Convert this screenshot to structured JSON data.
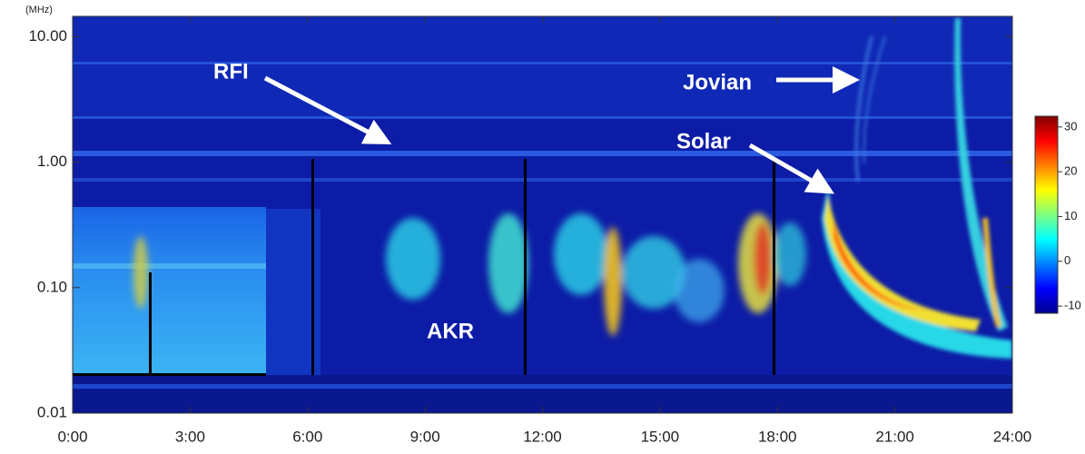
{
  "chart_data": {
    "type": "spectrogram",
    "y_unit": "(MHz)",
    "xlim": [
      0,
      24
    ],
    "xticks": [
      {
        "value": 0,
        "label": "0:00"
      },
      {
        "value": 3,
        "label": "3:00"
      },
      {
        "value": 6,
        "label": "6:00"
      },
      {
        "value": 9,
        "label": "9:00"
      },
      {
        "value": 12,
        "label": "12:00"
      },
      {
        "value": 15,
        "label": "15:00"
      },
      {
        "value": 18,
        "label": "18:00"
      },
      {
        "value": 21,
        "label": "21:00"
      },
      {
        "value": 24,
        "label": "24:00"
      }
    ],
    "yscale": "log",
    "ylim": [
      0.01,
      14.5
    ],
    "yticks": [
      {
        "value": 0.01,
        "label": "0.01"
      },
      {
        "value": 0.1,
        "label": "0.10"
      },
      {
        "value": 1,
        "label": "1.00"
      },
      {
        "value": 10,
        "label": "10.00"
      }
    ],
    "colorbar": {
      "lim": [
        -11.6,
        32.4
      ],
      "ticks": [
        -10,
        0,
        10,
        20,
        30
      ],
      "colormap": "jet"
    },
    "annotations": [
      "RFI",
      "Jovian",
      "Solar",
      "AKR"
    ]
  }
}
